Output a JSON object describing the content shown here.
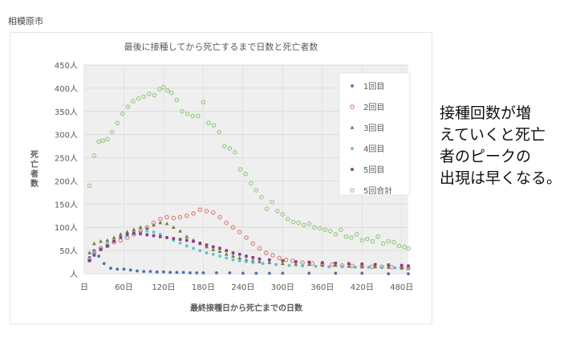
{
  "city": "相模原市",
  "side_text": [
    "接種回数が増",
    "えていくと死亡",
    "者のピークの",
    "出現は早くなる。"
  ],
  "chart_data": {
    "type": "scatter",
    "title": "最後に接種してから死亡するまで日数と死亡者数",
    "xlabel": "最終接種日から死亡までの日数",
    "ylabel": "死亡者数",
    "xlim": [
      0,
      490
    ],
    "ylim": [
      0,
      450
    ],
    "x_ticks": [
      "日",
      "60日",
      "120日",
      "180日",
      "240日",
      "300日",
      "360日",
      "420日",
      "480日"
    ],
    "y_ticks": [
      "人",
      "50人",
      "100人",
      "150人",
      "200人",
      "250人",
      "300人",
      "350人",
      "400人",
      "450人"
    ],
    "grid": true,
    "legend_position": "top-right",
    "series": [
      {
        "name": "1回目",
        "color": "#4d6fa9",
        "marker": "dot",
        "points": [
          [
            8,
            35
          ],
          [
            15,
            50
          ],
          [
            22,
            38
          ],
          [
            30,
            22
          ],
          [
            40,
            12
          ],
          [
            50,
            10
          ],
          [
            60,
            10
          ],
          [
            70,
            8
          ],
          [
            80,
            6
          ],
          [
            90,
            5
          ],
          [
            100,
            5
          ],
          [
            110,
            4
          ],
          [
            120,
            4
          ],
          [
            130,
            3
          ],
          [
            140,
            3
          ],
          [
            150,
            3
          ],
          [
            160,
            2
          ],
          [
            170,
            2
          ],
          [
            180,
            2
          ],
          [
            200,
            2
          ],
          [
            220,
            2
          ],
          [
            240,
            1
          ],
          [
            260,
            1
          ],
          [
            280,
            1
          ],
          [
            300,
            1
          ],
          [
            340,
            1
          ],
          [
            380,
            1
          ],
          [
            420,
            1
          ],
          [
            460,
            0
          ],
          [
            490,
            0
          ]
        ]
      },
      {
        "name": "2回目",
        "color": "#e08a82",
        "marker": "ring",
        "points": [
          [
            8,
            30
          ],
          [
            15,
            45
          ],
          [
            25,
            55
          ],
          [
            35,
            60
          ],
          [
            45,
            68
          ],
          [
            55,
            72
          ],
          [
            65,
            78
          ],
          [
            75,
            85
          ],
          [
            85,
            92
          ],
          [
            95,
            100
          ],
          [
            105,
            110
          ],
          [
            115,
            118
          ],
          [
            125,
            122
          ],
          [
            135,
            120
          ],
          [
            145,
            122
          ],
          [
            155,
            125
          ],
          [
            165,
            130
          ],
          [
            175,
            138
          ],
          [
            185,
            135
          ],
          [
            195,
            132
          ],
          [
            205,
            122
          ],
          [
            215,
            110
          ],
          [
            225,
            100
          ],
          [
            235,
            90
          ],
          [
            245,
            78
          ],
          [
            255,
            65
          ],
          [
            265,
            55
          ],
          [
            275,
            45
          ],
          [
            285,
            40
          ],
          [
            295,
            34
          ],
          [
            305,
            30
          ],
          [
            315,
            28
          ],
          [
            330,
            24
          ],
          [
            345,
            22
          ],
          [
            360,
            20
          ],
          [
            375,
            20
          ],
          [
            390,
            18
          ],
          [
            405,
            17
          ],
          [
            420,
            16
          ],
          [
            435,
            15
          ],
          [
            450,
            15
          ],
          [
            465,
            14
          ],
          [
            480,
            13
          ],
          [
            490,
            12
          ]
        ]
      },
      {
        "name": "3回目",
        "color": "#6b7f3c",
        "marker": "tri",
        "points": [
          [
            8,
            45
          ],
          [
            15,
            65
          ],
          [
            25,
            70
          ],
          [
            35,
            72
          ],
          [
            45,
            78
          ],
          [
            55,
            85
          ],
          [
            65,
            90
          ],
          [
            75,
            95
          ],
          [
            85,
            100
          ],
          [
            95,
            98
          ],
          [
            105,
            105
          ],
          [
            115,
            110
          ],
          [
            125,
            108
          ],
          [
            135,
            100
          ],
          [
            145,
            92
          ],
          [
            155,
            80
          ],
          [
            165,
            72
          ],
          [
            175,
            65
          ],
          [
            185,
            58
          ],
          [
            195,
            52
          ],
          [
            205,
            48
          ],
          [
            215,
            42
          ],
          [
            225,
            38
          ],
          [
            235,
            34
          ],
          [
            245,
            30
          ],
          [
            255,
            28
          ],
          [
            265,
            26
          ],
          [
            280,
            24
          ],
          [
            300,
            22
          ],
          [
            320,
            20
          ],
          [
            340,
            20
          ],
          [
            360,
            18
          ],
          [
            380,
            18
          ],
          [
            400,
            16
          ],
          [
            420,
            15
          ],
          [
            440,
            15
          ],
          [
            460,
            14
          ],
          [
            480,
            13
          ],
          [
            490,
            12
          ]
        ]
      },
      {
        "name": "4回目",
        "color": "#5bc2d6",
        "marker": "dot",
        "points": [
          [
            8,
            30
          ],
          [
            15,
            45
          ],
          [
            25,
            55
          ],
          [
            35,
            65
          ],
          [
            45,
            72
          ],
          [
            55,
            78
          ],
          [
            65,
            82
          ],
          [
            75,
            86
          ],
          [
            85,
            90
          ],
          [
            95,
            92
          ],
          [
            105,
            90
          ],
          [
            115,
            85
          ],
          [
            125,
            78
          ],
          [
            135,
            72
          ],
          [
            145,
            66
          ],
          [
            155,
            60
          ],
          [
            165,
            55
          ],
          [
            175,
            50
          ],
          [
            185,
            45
          ],
          [
            195,
            42
          ],
          [
            205,
            38
          ],
          [
            215,
            34
          ],
          [
            225,
            30
          ],
          [
            235,
            28
          ],
          [
            245,
            26
          ],
          [
            255,
            24
          ],
          [
            270,
            22
          ],
          [
            290,
            20
          ],
          [
            310,
            18
          ],
          [
            330,
            17
          ],
          [
            350,
            16
          ],
          [
            370,
            15
          ],
          [
            390,
            15
          ],
          [
            410,
            14
          ],
          [
            430,
            14
          ],
          [
            450,
            13
          ],
          [
            470,
            13
          ],
          [
            490,
            12
          ]
        ]
      },
      {
        "name": "5回目",
        "color": "#8a3d85",
        "marker": "square",
        "points": [
          [
            8,
            28
          ],
          [
            15,
            40
          ],
          [
            25,
            52
          ],
          [
            35,
            60
          ],
          [
            45,
            70
          ],
          [
            55,
            78
          ],
          [
            65,
            85
          ],
          [
            75,
            88
          ],
          [
            85,
            86
          ],
          [
            95,
            84
          ],
          [
            105,
            82
          ],
          [
            115,
            80
          ],
          [
            125,
            78
          ],
          [
            135,
            76
          ],
          [
            145,
            74
          ],
          [
            155,
            72
          ],
          [
            165,
            70
          ],
          [
            175,
            66
          ],
          [
            185,
            62
          ],
          [
            195,
            58
          ],
          [
            205,
            55
          ],
          [
            215,
            50
          ],
          [
            225,
            45
          ],
          [
            235,
            42
          ],
          [
            245,
            38
          ],
          [
            255,
            35
          ],
          [
            265,
            32
          ],
          [
            280,
            30
          ],
          [
            300,
            28
          ],
          [
            320,
            26
          ],
          [
            340,
            25
          ],
          [
            360,
            24
          ],
          [
            380,
            23
          ],
          [
            400,
            22
          ],
          [
            420,
            21
          ],
          [
            440,
            20
          ],
          [
            460,
            19
          ],
          [
            480,
            18
          ],
          [
            490,
            17
          ]
        ]
      },
      {
        "name": "5回合計",
        "color": "#9ccf8a",
        "marker": "ring",
        "points": [
          [
            8,
            190
          ],
          [
            15,
            255
          ],
          [
            22,
            285
          ],
          [
            28,
            287
          ],
          [
            35,
            290
          ],
          [
            42,
            305
          ],
          [
            50,
            325
          ],
          [
            58,
            345
          ],
          [
            66,
            360
          ],
          [
            74,
            372
          ],
          [
            82,
            378
          ],
          [
            90,
            382
          ],
          [
            98,
            388
          ],
          [
            106,
            385
          ],
          [
            114,
            398
          ],
          [
            120,
            402
          ],
          [
            126,
            395
          ],
          [
            132,
            390
          ],
          [
            140,
            375
          ],
          [
            148,
            350
          ],
          [
            156,
            345
          ],
          [
            164,
            340
          ],
          [
            172,
            340
          ],
          [
            180,
            370
          ],
          [
            188,
            325
          ],
          [
            196,
            320
          ],
          [
            204,
            305
          ],
          [
            212,
            275
          ],
          [
            220,
            270
          ],
          [
            228,
            262
          ],
          [
            236,
            225
          ],
          [
            244,
            215
          ],
          [
            252,
            195
          ],
          [
            260,
            180
          ],
          [
            268,
            165
          ],
          [
            276,
            140
          ],
          [
            284,
            155
          ],
          [
            292,
            135
          ],
          [
            300,
            128
          ],
          [
            308,
            118
          ],
          [
            316,
            112
          ],
          [
            324,
            110
          ],
          [
            332,
            105
          ],
          [
            340,
            108
          ],
          [
            348,
            100
          ],
          [
            356,
            98
          ],
          [
            364,
            95
          ],
          [
            372,
            92
          ],
          [
            380,
            85
          ],
          [
            388,
            95
          ],
          [
            396,
            80
          ],
          [
            404,
            78
          ],
          [
            412,
            85
          ],
          [
            420,
            72
          ],
          [
            428,
            75
          ],
          [
            436,
            70
          ],
          [
            444,
            80
          ],
          [
            452,
            65
          ],
          [
            460,
            70
          ],
          [
            468,
            68
          ],
          [
            476,
            60
          ],
          [
            484,
            58
          ],
          [
            490,
            55
          ]
        ]
      }
    ]
  }
}
